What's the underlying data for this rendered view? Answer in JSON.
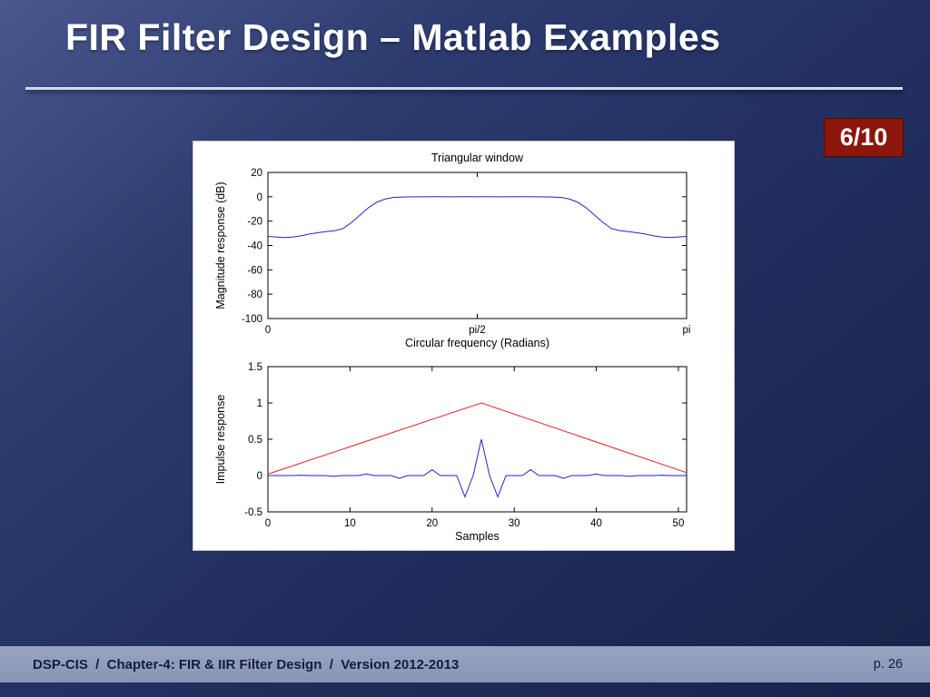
{
  "slide": {
    "title": "FIR Filter Design – Matlab Examples",
    "badge": "6/10",
    "footer_left": "DSP-CIS  /  Chapter-4: FIR & IIR Filter Design  /  Version 2012-2013",
    "footer_right": "p. 26"
  },
  "colors": {
    "background_top": "#4a578e",
    "background_bottom": "#182349",
    "footer_bar": "#929bba",
    "footer_text": "#141c3f",
    "badge_bg": "#8c150c",
    "divider": "#d4d8e4",
    "panel_bg": "#ffffff",
    "axis": "#000000",
    "line_blue": "#2222cc",
    "line_red": "#dd2222"
  },
  "chart_data": [
    {
      "type": "line",
      "title": "Triangular window",
      "xlabel": "Circular frequency (Radians)",
      "ylabel": "Magnitude response (dB)",
      "xlim": [
        0,
        1
      ],
      "ylim": [
        -100,
        20
      ],
      "grid": false,
      "legend": "none",
      "xticks": {
        "values": [
          0,
          0.5,
          1
        ],
        "labels": [
          "0",
          "pi/2",
          "pi"
        ]
      },
      "yticks": {
        "values": [
          20,
          0,
          -20,
          -40,
          -60,
          -80,
          -100
        ],
        "labels": [
          "20",
          "0",
          "-20",
          "-40",
          "-60",
          "-80",
          "-100"
        ]
      },
      "series": [
        {
          "name": "magnitude-response",
          "color_key": "line_blue",
          "points": [
            [
              0.0,
              -32.5
            ],
            [
              0.02,
              -33.0
            ],
            [
              0.04,
              -33.5
            ],
            [
              0.06,
              -33.0
            ],
            [
              0.08,
              -32.0
            ],
            [
              0.1,
              -30.5
            ],
            [
              0.12,
              -29.5
            ],
            [
              0.14,
              -28.5
            ],
            [
              0.16,
              -27.8
            ],
            [
              0.18,
              -26.0
            ],
            [
              0.2,
              -21.0
            ],
            [
              0.22,
              -15.0
            ],
            [
              0.24,
              -9.0
            ],
            [
              0.26,
              -4.5
            ],
            [
              0.28,
              -1.8
            ],
            [
              0.3,
              -0.5
            ],
            [
              0.33,
              -0.1
            ],
            [
              0.36,
              0.0
            ],
            [
              0.4,
              0.1
            ],
            [
              0.44,
              0.0
            ],
            [
              0.48,
              0.1
            ],
            [
              0.5,
              0.0
            ],
            [
              0.52,
              0.1
            ],
            [
              0.56,
              0.0
            ],
            [
              0.6,
              0.1
            ],
            [
              0.64,
              0.0
            ],
            [
              0.67,
              -0.1
            ],
            [
              0.7,
              -0.5
            ],
            [
              0.72,
              -1.8
            ],
            [
              0.74,
              -4.5
            ],
            [
              0.76,
              -9.0
            ],
            [
              0.78,
              -15.0
            ],
            [
              0.8,
              -21.0
            ],
            [
              0.82,
              -26.0
            ],
            [
              0.84,
              -27.8
            ],
            [
              0.86,
              -28.5
            ],
            [
              0.88,
              -29.5
            ],
            [
              0.9,
              -30.5
            ],
            [
              0.92,
              -32.0
            ],
            [
              0.94,
              -33.0
            ],
            [
              0.96,
              -33.5
            ],
            [
              0.98,
              -33.0
            ],
            [
              1.0,
              -32.5
            ]
          ]
        }
      ]
    },
    {
      "type": "line",
      "title": "",
      "xlabel": "Samples",
      "ylabel": "Impulse response",
      "xlim": [
        0,
        51
      ],
      "ylim": [
        -0.5,
        1.5
      ],
      "grid": false,
      "legend": "none",
      "xticks": {
        "values": [
          0,
          10,
          20,
          30,
          40,
          50
        ],
        "labels": [
          "0",
          "10",
          "20",
          "30",
          "40",
          "50"
        ]
      },
      "yticks": {
        "values": [
          1.5,
          1,
          0.5,
          0,
          -0.5
        ],
        "labels": [
          "1.5",
          "1",
          "0.5",
          "0",
          "-0.5"
        ]
      },
      "series": [
        {
          "name": "triangular-window",
          "color_key": "line_red",
          "points": [
            [
              0,
              0.02
            ],
            [
              26,
              1
            ],
            [
              51,
              0.04
            ]
          ]
        },
        {
          "name": "windowed-impulse-response",
          "color_key": "line_blue",
          "points": [
            [
              0,
              0
            ],
            [
              1,
              0
            ],
            [
              2,
              0
            ],
            [
              3,
              0
            ],
            [
              4,
              0.005
            ],
            [
              5,
              0
            ],
            [
              6,
              0
            ],
            [
              7,
              0
            ],
            [
              8,
              -0.011
            ],
            [
              9,
              0
            ],
            [
              10,
              0
            ],
            [
              11,
              0
            ],
            [
              12,
              0.021
            ],
            [
              13,
              0
            ],
            [
              14,
              0
            ],
            [
              15,
              0
            ],
            [
              16,
              -0.039
            ],
            [
              17,
              0
            ],
            [
              18,
              0
            ],
            [
              19,
              0
            ],
            [
              20,
              0.082
            ],
            [
              21,
              0
            ],
            [
              22,
              0
            ],
            [
              23,
              0
            ],
            [
              24,
              -0.294
            ],
            [
              25,
              0
            ],
            [
              26,
              0.5
            ],
            [
              27,
              0
            ],
            [
              28,
              -0.294
            ],
            [
              29,
              0
            ],
            [
              30,
              0
            ],
            [
              31,
              0
            ],
            [
              32,
              0.082
            ],
            [
              33,
              0
            ],
            [
              34,
              0
            ],
            [
              35,
              0
            ],
            [
              36,
              -0.039
            ],
            [
              37,
              0
            ],
            [
              38,
              0
            ],
            [
              39,
              0
            ],
            [
              40,
              0.021
            ],
            [
              41,
              0
            ],
            [
              42,
              0
            ],
            [
              43,
              0
            ],
            [
              44,
              -0.011
            ],
            [
              45,
              0
            ],
            [
              46,
              0
            ],
            [
              47,
              0
            ],
            [
              48,
              0.005
            ],
            [
              49,
              0
            ],
            [
              50,
              0
            ],
            [
              51,
              0
            ]
          ]
        }
      ]
    }
  ]
}
